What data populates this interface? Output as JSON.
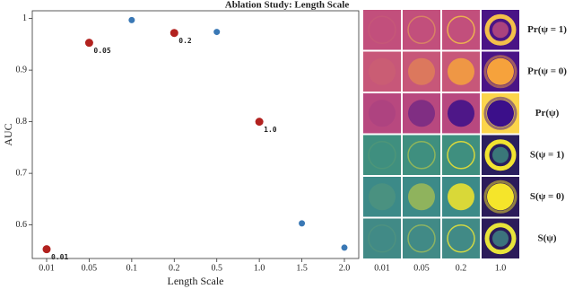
{
  "chart_data": {
    "type": "scatter",
    "title": "Ablation Study: Length Scale",
    "x_label": "Length Scale",
    "y_label": "AUC",
    "categories": [
      "0.01",
      "0.05",
      "0.1",
      "0.2",
      "0.5",
      "1.0",
      "1.5",
      "2.0"
    ],
    "values": [
      0.553,
      0.953,
      0.997,
      0.972,
      0.974,
      0.8,
      0.603,
      0.556
    ],
    "point_colors": [
      "#b2221f",
      "#b2221f",
      "#3a78b5",
      "#b2221f",
      "#3a78b5",
      "#b2221f",
      "#3a78b5",
      "#3a78b5"
    ],
    "point_labels": [
      "0.01",
      "0.05",
      null,
      "0.2",
      null,
      "1.0",
      null,
      null
    ],
    "ylim": [
      0.535,
      1.015
    ],
    "yticks": [
      0.6,
      0.7,
      0.8,
      0.9,
      1.0
    ]
  },
  "image_grid": {
    "columns": [
      "0.01",
      "0.05",
      "0.2",
      "1.0"
    ],
    "rows": [
      "Pr(ψ = 1)",
      "Pr(ψ = 0)",
      "Pr(ψ)",
      "S(ψ = 1)",
      "S(ψ = 0)",
      "S(ψ)"
    ]
  }
}
